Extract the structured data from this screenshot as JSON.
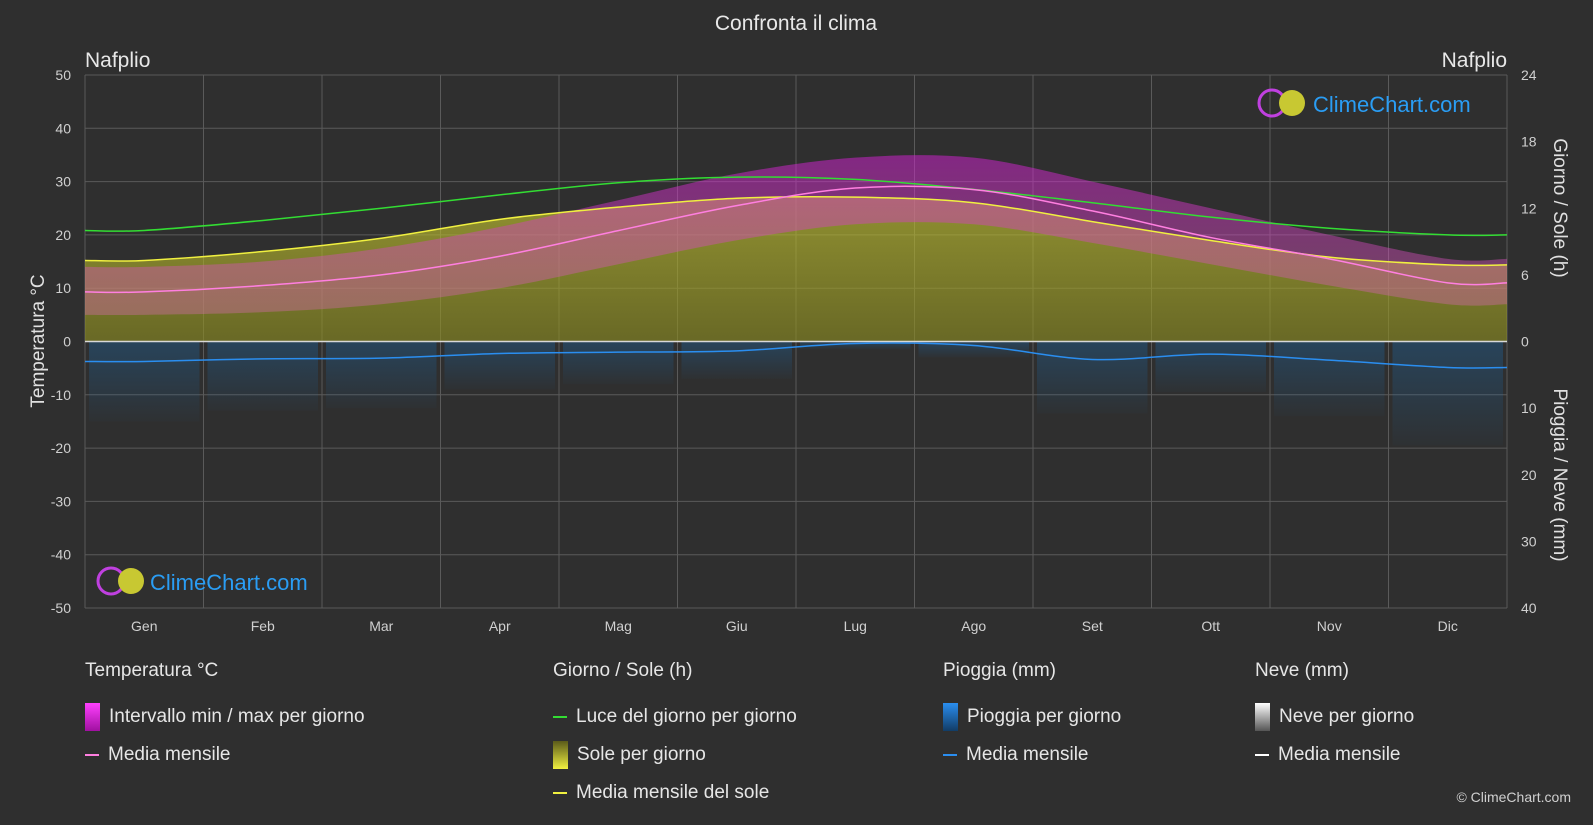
{
  "title": "Confronta il clima",
  "location_left": "Nafplio",
  "location_right": "Nafplio",
  "brand": "ClimeChart.com",
  "copyright": "© ClimeChart.com",
  "colors": {
    "background": "#2f2f2f",
    "grid": "#5a5a5a",
    "temp_range": "#d020d0",
    "temp_mean": "#ff7fe0",
    "daylight": "#33dd33",
    "sunshine": "#c8c832",
    "sunshine_mean": "#f0f040",
    "rain": "#1a6fb5",
    "rain_mean": "#2a8ef0",
    "snow_mean": "#ffffff",
    "brand": "#2a9df4"
  },
  "chart_data": {
    "type": "area",
    "x_label": "",
    "categories": [
      "Gen",
      "Feb",
      "Mar",
      "Apr",
      "Mag",
      "Giu",
      "Lug",
      "Ago",
      "Set",
      "Ott",
      "Nov",
      "Dic"
    ],
    "y_left": {
      "label": "Temperatura °C",
      "range": [
        -50,
        50
      ],
      "ticks": [
        50,
        40,
        30,
        20,
        10,
        0,
        -10,
        -20,
        -30,
        -40,
        -50
      ]
    },
    "y_right_top": {
      "label": "Giorno / Sole (h)",
      "range": [
        0,
        24
      ],
      "ticks": [
        24,
        18,
        12,
        6,
        0
      ]
    },
    "y_right_bottom": {
      "label": "Pioggia / Neve (mm)",
      "range": [
        0,
        40
      ],
      "ticks": [
        10,
        20,
        30,
        40
      ]
    },
    "grid": true,
    "series": [
      {
        "name": "Media mensile",
        "group": "Temperatura °C",
        "values": [
          9.3,
          10.5,
          12.5,
          16.0,
          20.8,
          25.5,
          28.8,
          28.5,
          24.5,
          19.5,
          15.5,
          11.0
        ]
      },
      {
        "name": "Intervallo min / max per giorno",
        "group": "Temperatura °C",
        "min": [
          5.0,
          5.5,
          7.0,
          10.0,
          14.5,
          19.0,
          22.0,
          22.0,
          18.5,
          14.5,
          10.5,
          7.0
        ],
        "max": [
          14.0,
          15.0,
          17.5,
          21.5,
          26.5,
          31.5,
          34.5,
          34.5,
          30.0,
          25.0,
          20.0,
          15.5
        ]
      },
      {
        "name": "Luce del giorno per giorno",
        "group": "Giorno / Sole (h)",
        "values": [
          10.0,
          10.9,
          12.0,
          13.2,
          14.3,
          14.8,
          14.6,
          13.7,
          12.5,
          11.2,
          10.2,
          9.6
        ]
      },
      {
        "name": "Media mensile del sole",
        "group": "Giorno / Sole (h)",
        "values": [
          7.3,
          8.1,
          9.3,
          11.0,
          12.1,
          12.9,
          13.0,
          12.5,
          10.8,
          9.1,
          7.6,
          6.9
        ]
      },
      {
        "name": "Media mensile",
        "group": "Pioggia (mm)",
        "values": [
          3.0,
          2.6,
          2.5,
          1.8,
          1.6,
          1.4,
          0.3,
          0.6,
          2.7,
          1.9,
          2.8,
          3.9
        ]
      },
      {
        "name": "Media mensile",
        "group": "Neve (mm)",
        "values": [
          0,
          0,
          0,
          0,
          0,
          0,
          0,
          0,
          0,
          0,
          0,
          0
        ]
      }
    ]
  },
  "legend": {
    "temperature": {
      "title": "Temperatura °C",
      "range_label": "Intervallo min / max per giorno",
      "mean_label": "Media mensile"
    },
    "sun": {
      "title": "Giorno / Sole (h)",
      "daylight_label": "Luce del giorno per giorno",
      "sunshine_label": "Sole per giorno",
      "sun_mean_label": "Media mensile del sole"
    },
    "rain": {
      "title": "Pioggia (mm)",
      "rain_label": "Pioggia per giorno",
      "mean_label": "Media mensile"
    },
    "snow": {
      "title": "Neve (mm)",
      "snow_label": "Neve per giorno",
      "mean_label": "Media mensile"
    }
  }
}
